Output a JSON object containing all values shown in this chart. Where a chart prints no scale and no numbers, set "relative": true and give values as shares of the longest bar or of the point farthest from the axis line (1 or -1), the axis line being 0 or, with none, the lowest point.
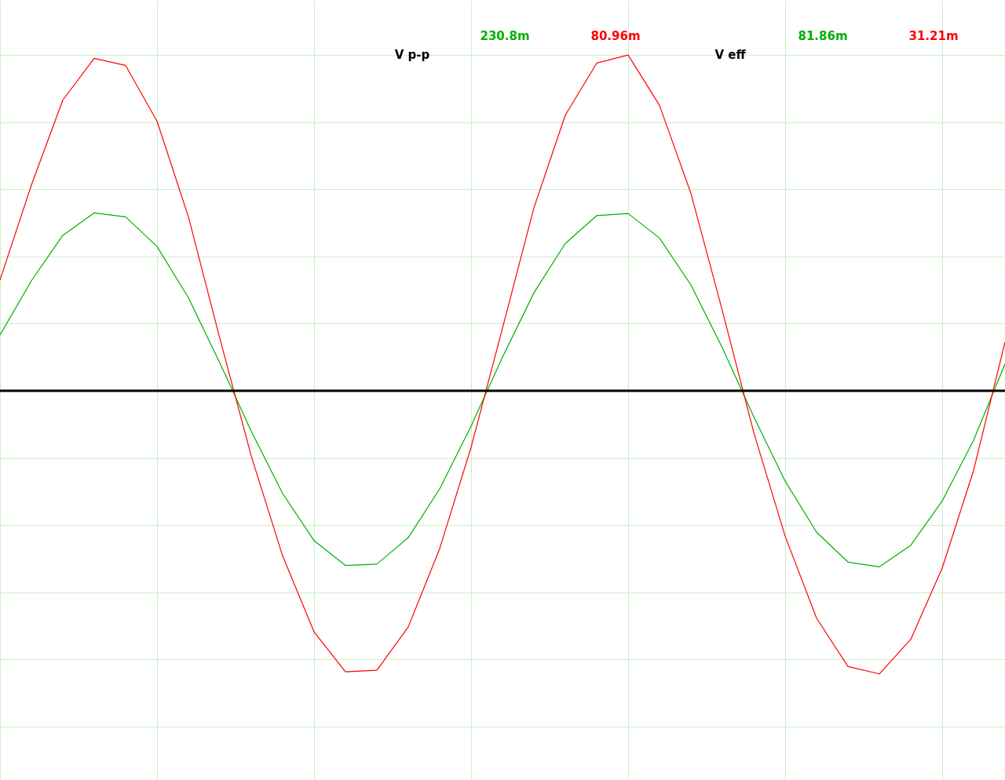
{
  "chart_data": {
    "type": "line",
    "relative": true,
    "grid": true,
    "legend": false,
    "marker": "none",
    "line_style": "solid",
    "categories": [
      null,
      null,
      null,
      null,
      null,
      null,
      null,
      null,
      null,
      null,
      null,
      null,
      null,
      null,
      null,
      null,
      null,
      null,
      null,
      null,
      null,
      null,
      null,
      null,
      null,
      null,
      null,
      null,
      null,
      null,
      null,
      null,
      null
    ],
    "series": [
      {
        "color": "#00b000",
        "values": [
          0.166,
          0.328,
          0.463,
          0.53,
          0.518,
          0.43,
          0.277,
          0.083,
          -0.12,
          -0.306,
          -0.446,
          -0.52,
          -0.516,
          -0.437,
          -0.292,
          -0.105,
          0.1,
          0.292,
          0.439,
          0.522,
          0.528,
          0.455,
          0.315,
          0.128,
          -0.077,
          -0.269,
          -0.421,
          -0.51,
          -0.524,
          -0.46,
          -0.328,
          -0.147,
          0.08
        ]
      },
      {
        "color": "#ff0000",
        "values": [
          0.33,
          0.613,
          0.866,
          0.99,
          0.969,
          0.803,
          0.518,
          0.156,
          -0.194,
          -0.492,
          -0.718,
          -0.837,
          -0.832,
          -0.703,
          -0.47,
          -0.168,
          0.187,
          0.545,
          0.821,
          0.976,
          1.0,
          0.85,
          0.588,
          0.239,
          -0.124,
          -0.433,
          -0.677,
          -0.821,
          -0.843,
          -0.74,
          -0.528,
          -0.237,
          0.145
        ]
      }
    ],
    "annotations": [
      "V p-p",
      "230.8m",
      "80.96m",
      "V eff",
      "81.86m",
      "31.21m"
    ]
  }
}
